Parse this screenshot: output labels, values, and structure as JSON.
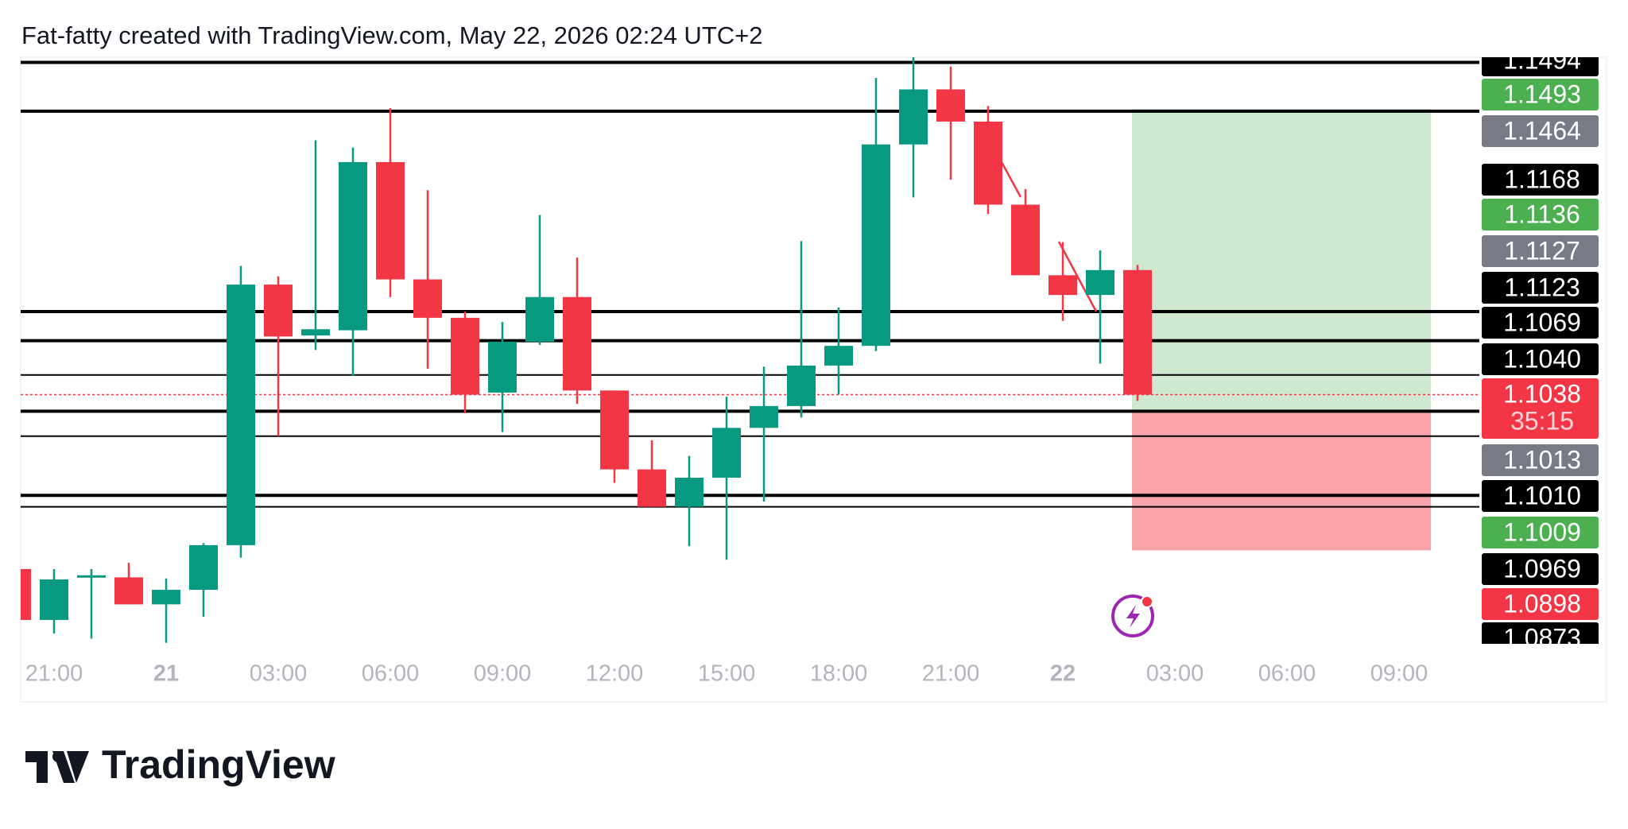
{
  "header": "Fat-fatty created with TradingView.com, May 22, 2026 02:24 UTC+2",
  "brand": "TradingView",
  "chart_data": {
    "type": "candlestick",
    "up_color": "#089981",
    "down_color": "#f23645",
    "categories": [
      null,
      "21:00",
      null,
      null,
      "21",
      null,
      null,
      "03:00",
      null,
      null,
      "06:00",
      null,
      null,
      "09:00",
      null,
      null,
      "12:00",
      null,
      null,
      "15:00",
      null,
      null,
      "18:00",
      null,
      null,
      "21:00",
      null,
      null,
      "22",
      null,
      null,
      "03:00",
      null,
      null,
      "06:00",
      null,
      null,
      "09:00"
    ],
    "open": [
      1.10212,
      1.10163,
      1.10204,
      1.10204,
      1.10178,
      1.10192,
      1.10235,
      1.10486,
      1.10437,
      1.10442,
      1.10604,
      1.10491,
      1.10454,
      1.10382,
      1.10431,
      1.10474,
      1.10384,
      1.10308,
      1.10272,
      1.103,
      1.10348,
      1.10369,
      1.10408,
      1.10427,
      1.10621,
      1.10674,
      1.10643,
      1.10563,
      1.10495,
      1.10476,
      1.105,
      null,
      null,
      null,
      null,
      null,
      null,
      null
    ],
    "high": [
      1.10212,
      1.10212,
      1.10212,
      1.10218,
      1.10203,
      1.10237,
      1.10504,
      1.10494,
      1.10625,
      1.10618,
      1.10656,
      1.10577,
      1.1046,
      1.1045,
      1.10553,
      1.10512,
      1.10384,
      1.10336,
      1.10321,
      1.10378,
      1.10407,
      1.10528,
      1.10464,
      1.10685,
      1.10705,
      1.10696,
      1.10658,
      1.10578,
      1.10527,
      1.10519,
      1.10505,
      null,
      null,
      null,
      null,
      null,
      null,
      null
    ],
    "low": [
      1.10163,
      1.1015,
      1.10145,
      1.10178,
      1.10141,
      1.10166,
      1.10223,
      1.1034,
      1.10423,
      1.10398,
      1.10474,
      1.10405,
      1.10362,
      1.10344,
      1.10428,
      1.10371,
      1.10295,
      1.10272,
      1.10234,
      1.10221,
      1.10277,
      1.10358,
      1.1038,
      1.10422,
      1.1057,
      1.10587,
      1.10554,
      1.10495,
      1.10451,
      1.1041,
      1.10374,
      null,
      null,
      null,
      null,
      null,
      null,
      null
    ],
    "close": [
      1.10163,
      1.10202,
      1.10206,
      1.10178,
      1.10192,
      1.10235,
      1.10486,
      1.10436,
      1.10443,
      1.10604,
      1.10491,
      1.10454,
      1.1038,
      1.10431,
      1.10474,
      1.10384,
      1.10308,
      1.10272,
      1.103,
      1.10348,
      1.10369,
      1.10408,
      1.10427,
      1.10621,
      1.10674,
      1.10643,
      1.10563,
      1.10495,
      1.10476,
      1.105,
      1.1038,
      null,
      null,
      null,
      null,
      null,
      null,
      null
    ],
    "ylim": [
      1.1014,
      1.10705
    ],
    "levels": [
      1.107,
      1.10653,
      1.1046,
      1.10432,
      1.10399,
      1.10364,
      1.1034,
      1.10283,
      1.10272
    ],
    "last_price": 1.1038,
    "position": {
      "target": 1.10655,
      "entry": 1.10365,
      "stop": 1.1023
    },
    "price_labels": [
      {
        "label": "1.1494",
        "color": "#000000"
      },
      {
        "label": "1.1493",
        "color": "#4caf50"
      },
      {
        "label": "1.1464",
        "color": "#787b86"
      },
      {
        "label": "1.1168",
        "color": "#000000"
      },
      {
        "label": "1.1136",
        "color": "#4caf50"
      },
      {
        "label": "1.1127",
        "color": "#787b86"
      },
      {
        "label": "1.1123",
        "color": "#000000"
      },
      {
        "label": "1.1069",
        "color": "#000000"
      },
      {
        "label": "1.1040",
        "color": "#000000"
      },
      {
        "label": "1.1038",
        "color": "#f23645"
      },
      {
        "label": "1.1013",
        "color": "#787b86"
      },
      {
        "label": "1.1010",
        "color": "#000000"
      },
      {
        "label": "1.1009",
        "color": "#4caf50"
      },
      {
        "label": "1.0969",
        "color": "#000000"
      },
      {
        "label": "1.0898",
        "color": "#f23645"
      },
      {
        "label": "1.0873",
        "color": "#000000"
      }
    ],
    "countdown": "35:15"
  }
}
